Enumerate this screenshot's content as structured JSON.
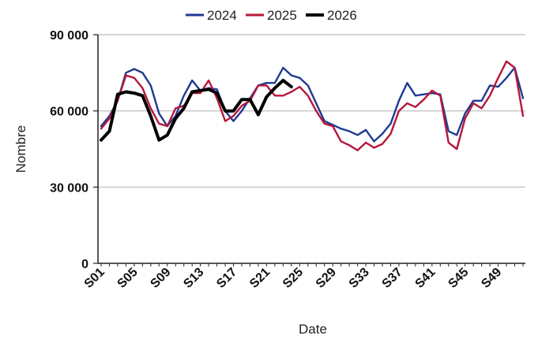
{
  "chart_data": {
    "type": "line",
    "xlabel": "Date",
    "ylabel": "Nombre",
    "ylim": [
      0,
      90000
    ],
    "y_ticks": [
      0,
      30000,
      60000,
      90000
    ],
    "y_tick_labels": [
      "0",
      "30 000",
      "60 000",
      "90 000"
    ],
    "x_range": [
      1,
      52
    ],
    "x_ticks": [
      1,
      5,
      9,
      13,
      17,
      21,
      25,
      29,
      33,
      37,
      41,
      45,
      49
    ],
    "x_tick_labels": [
      "S01",
      "S05",
      "S09",
      "S13",
      "S17",
      "S21",
      "S25",
      "S29",
      "S33",
      "S37",
      "S41",
      "S45",
      "S49"
    ],
    "grid": "horizontal",
    "legend_position": "top-center",
    "series": [
      {
        "name": "2024",
        "color": "#1f3a93",
        "x": [
          1,
          2,
          3,
          4,
          5,
          6,
          7,
          8,
          9,
          10,
          11,
          12,
          13,
          14,
          15,
          16,
          17,
          18,
          19,
          20,
          21,
          22,
          23,
          24,
          25,
          26,
          27,
          28,
          29,
          30,
          31,
          32,
          33,
          34,
          35,
          36,
          37,
          38,
          39,
          40,
          41,
          42,
          43,
          44,
          45,
          46,
          47,
          48,
          49,
          50,
          51,
          52
        ],
        "values": [
          54000,
          58000,
          64000,
          75000,
          76500,
          75000,
          70000,
          59000,
          54000,
          58000,
          66000,
          72000,
          68000,
          69000,
          68500,
          60000,
          56000,
          60000,
          65000,
          70000,
          71000,
          71000,
          77000,
          74000,
          73000,
          70000,
          63000,
          56000,
          54500,
          53000,
          52000,
          50500,
          52500,
          48000,
          51000,
          55000,
          64000,
          71000,
          66000,
          66500,
          67000,
          66500,
          52000,
          50500,
          59000,
          64000,
          64000,
          70000,
          69500,
          73000,
          77000,
          65000
        ]
      },
      {
        "name": "2025",
        "color": "#b5173a",
        "x": [
          1,
          2,
          3,
          4,
          5,
          6,
          7,
          8,
          9,
          10,
          11,
          12,
          13,
          14,
          15,
          16,
          17,
          18,
          19,
          20,
          21,
          22,
          23,
          24,
          25,
          26,
          27,
          28,
          29,
          30,
          31,
          32,
          33,
          34,
          35,
          36,
          37,
          38,
          39,
          40,
          41,
          42,
          43,
          44,
          45,
          46,
          47,
          48,
          49,
          50,
          51,
          52
        ],
        "values": [
          53000,
          57000,
          64000,
          74000,
          73000,
          69000,
          61000,
          55000,
          54000,
          61000,
          62000,
          67000,
          67000,
          72000,
          65000,
          56000,
          58000,
          62000,
          64000,
          70000,
          70000,
          66000,
          66000,
          67500,
          69500,
          66000,
          60000,
          55000,
          54000,
          48000,
          46500,
          44500,
          47500,
          45500,
          47000,
          51000,
          60000,
          63000,
          61500,
          64500,
          68000,
          66000,
          47500,
          45000,
          57000,
          63000,
          61000,
          66000,
          73000,
          79500,
          77000,
          58000
        ]
      },
      {
        "name": "2026",
        "color": "#000000",
        "x": [
          1,
          2,
          3,
          4,
          5,
          6,
          7,
          8,
          9,
          10,
          11,
          12,
          13,
          14,
          15,
          16,
          17,
          18,
          19,
          20,
          21,
          22,
          23,
          24
        ],
        "values": [
          48500,
          52000,
          66500,
          67500,
          67000,
          66000,
          58000,
          48500,
          50500,
          57000,
          61000,
          67500,
          68000,
          68500,
          67000,
          60000,
          60000,
          64500,
          64500,
          58500,
          65500,
          69000,
          72000,
          69500
        ]
      }
    ]
  }
}
